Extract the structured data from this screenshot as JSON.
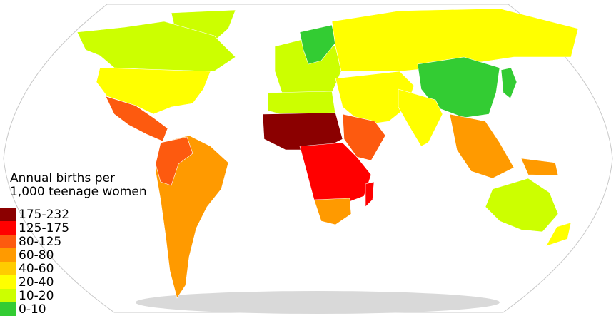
{
  "title_lines": [
    "Annual births per",
    "1,000 teenage women"
  ],
  "legend": [
    {
      "label": "175-232",
      "color": "#8b0000"
    },
    {
      "label": "125-175",
      "color": "#ff0000"
    },
    {
      "label": "80-125",
      "color": "#fd5a0f"
    },
    {
      "label": "60-80",
      "color": "#ff9a00"
    },
    {
      "label": "40-60",
      "color": "#ffcc00"
    },
    {
      "label": "20-40",
      "color": "#ffff00"
    },
    {
      "label": "10-20",
      "color": "#ccff00"
    },
    {
      "label": "0-10",
      "color": "#33cc33"
    }
  ]
}
